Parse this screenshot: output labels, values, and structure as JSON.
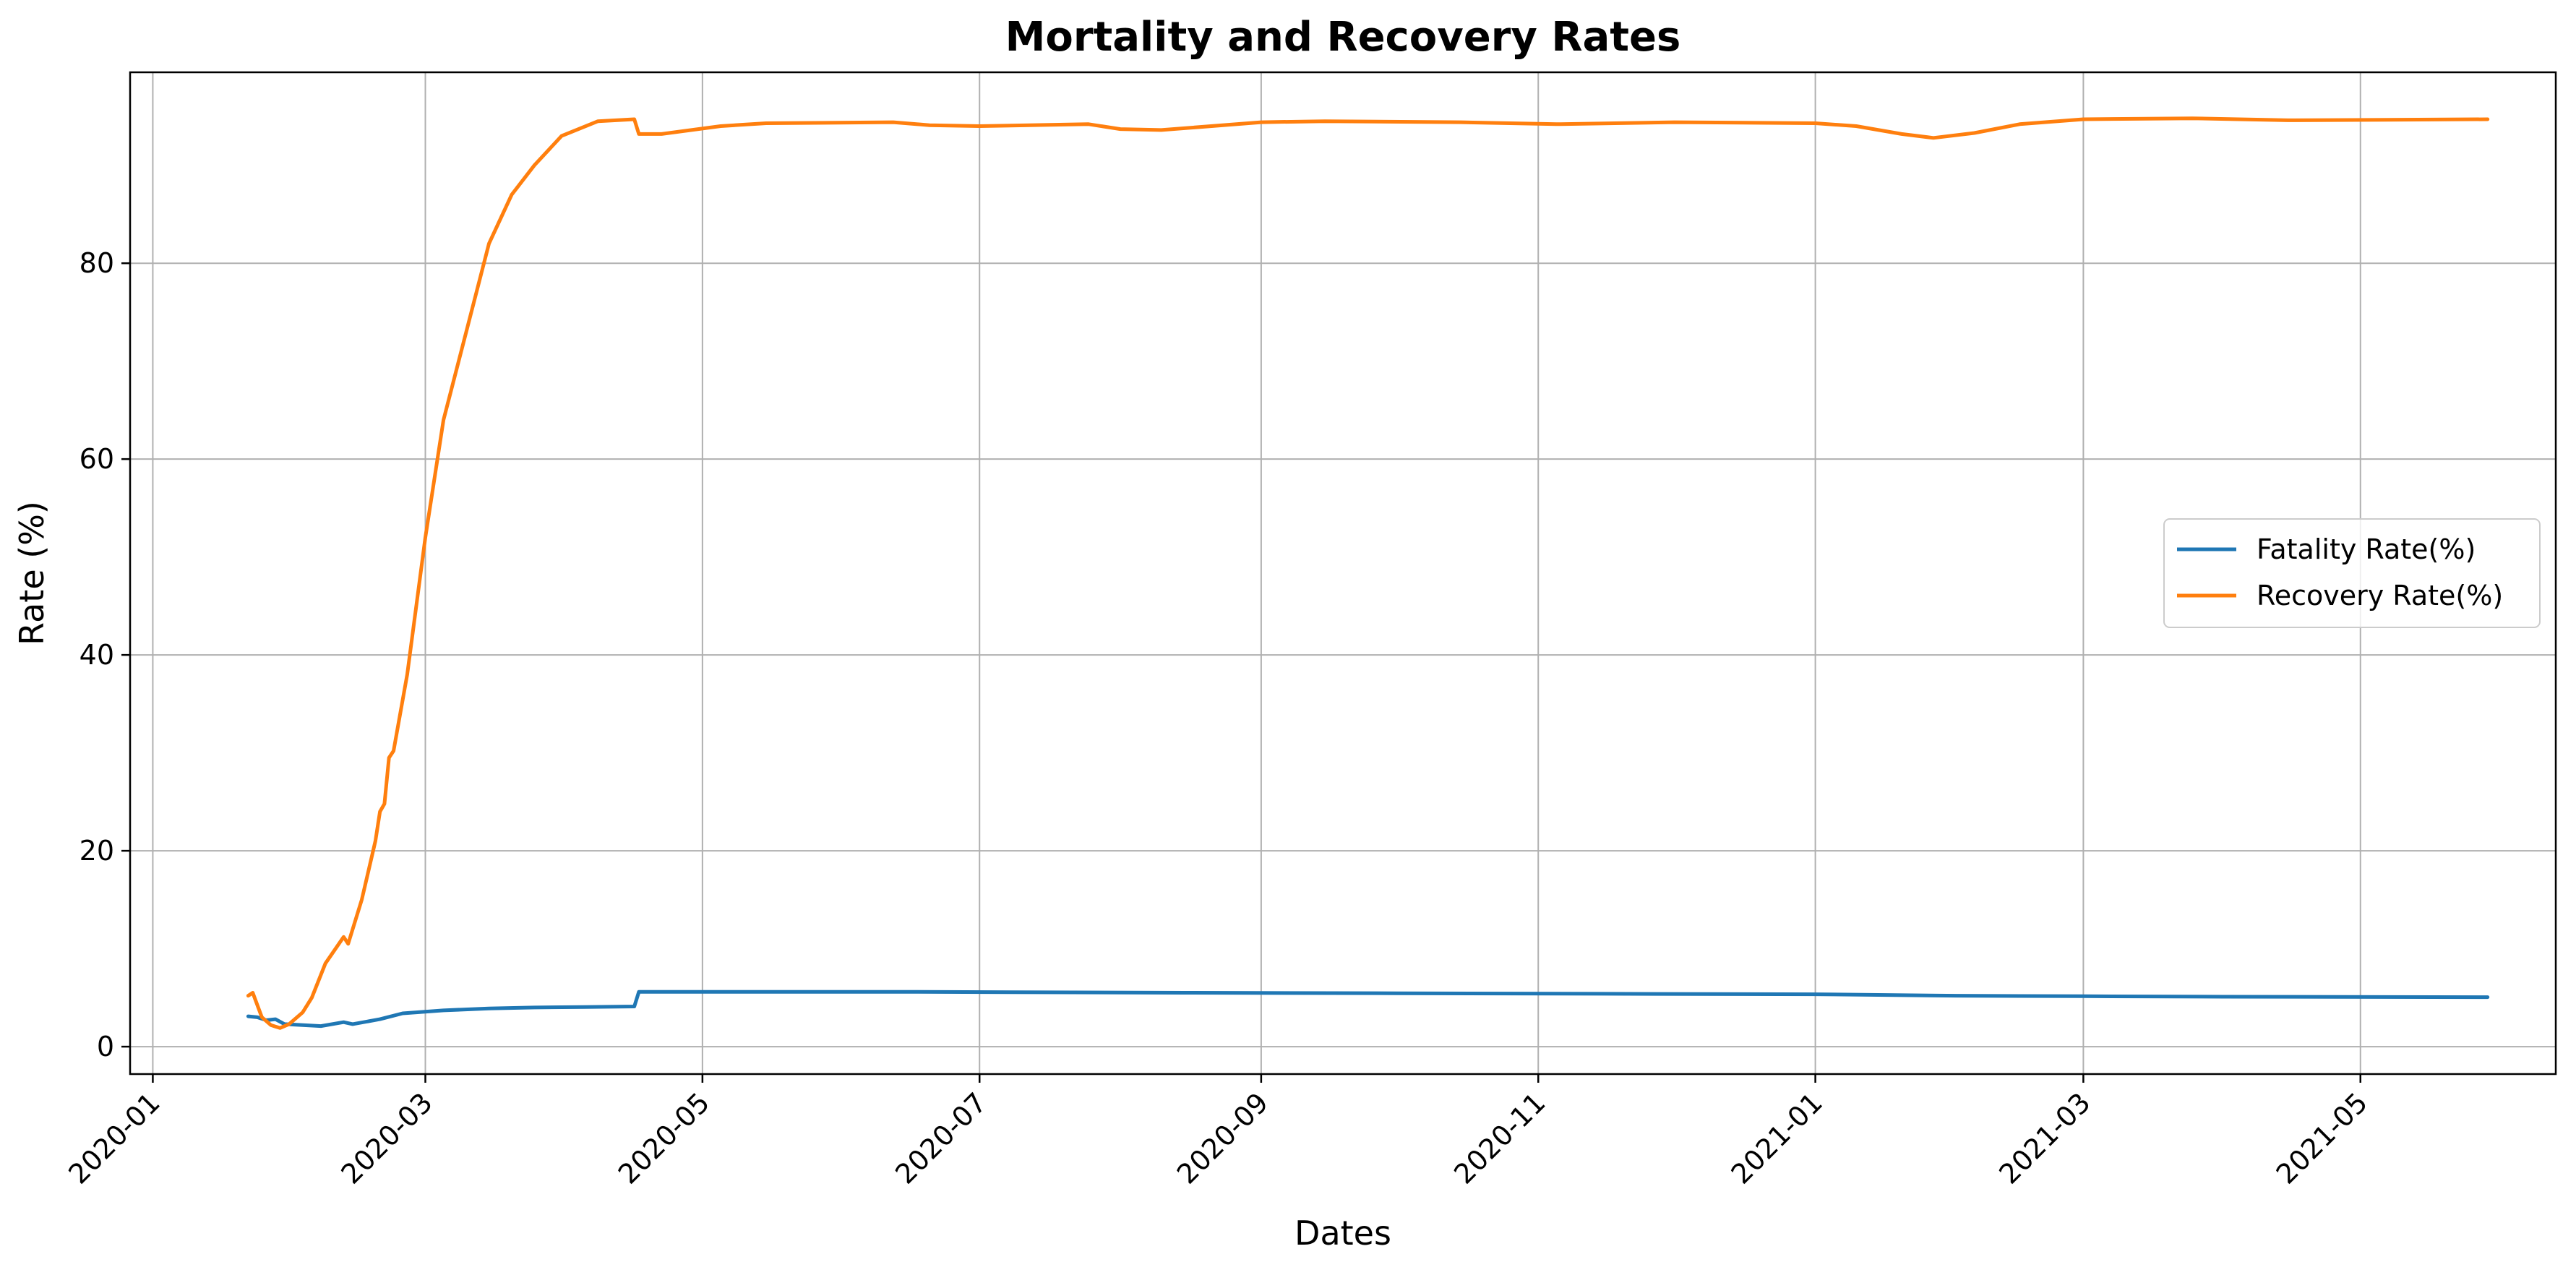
{
  "chart_data": {
    "type": "line",
    "title": "Mortality and Recovery Rates",
    "xlabel": "Dates",
    "ylabel": "Rate (%)",
    "x_axis": "date",
    "xlim": [
      "2019-12-27",
      "2021-06-13"
    ],
    "ylim": [
      -2.8,
      99.5
    ],
    "grid": true,
    "legend_position": "center-right",
    "x_ticks": [
      "2020-01-01",
      "2020-03-01",
      "2020-05-01",
      "2020-07-01",
      "2020-09-01",
      "2020-11-01",
      "2021-01-01",
      "2021-03-01",
      "2021-05-01"
    ],
    "x_tick_labels": [
      "2020-01",
      "2020-03",
      "2020-05",
      "2020-07",
      "2020-09",
      "2020-11",
      "2021-01",
      "2021-03",
      "2021-05"
    ],
    "y_ticks": [
      0,
      20,
      40,
      60,
      80
    ],
    "y_tick_labels": [
      "0",
      "20",
      "40",
      "60",
      "80"
    ],
    "series": [
      {
        "name": "Fatality Rate(%)",
        "color": "#1f77b4",
        "points": [
          [
            "2020-01-22",
            3.1
          ],
          [
            "2020-01-24",
            3.0
          ],
          [
            "2020-01-26",
            2.7
          ],
          [
            "2020-01-28",
            2.8
          ],
          [
            "2020-01-30",
            2.3
          ],
          [
            "2020-02-03",
            2.2
          ],
          [
            "2020-02-07",
            2.1
          ],
          [
            "2020-02-12",
            2.5
          ],
          [
            "2020-02-14",
            2.3
          ],
          [
            "2020-02-20",
            2.8
          ],
          [
            "2020-02-25",
            3.4
          ],
          [
            "2020-03-05",
            3.7
          ],
          [
            "2020-03-15",
            3.9
          ],
          [
            "2020-03-25",
            4.0
          ],
          [
            "2020-04-05",
            4.05
          ],
          [
            "2020-04-16",
            4.1
          ],
          [
            "2020-04-17",
            5.6
          ],
          [
            "2020-05-15",
            5.6
          ],
          [
            "2020-06-15",
            5.6
          ],
          [
            "2020-07-15",
            5.55
          ],
          [
            "2020-08-15",
            5.5
          ],
          [
            "2020-10-01",
            5.45
          ],
          [
            "2020-11-15",
            5.4
          ],
          [
            "2021-01-01",
            5.35
          ],
          [
            "2021-02-01",
            5.2
          ],
          [
            "2021-03-01",
            5.15
          ],
          [
            "2021-04-01",
            5.1
          ],
          [
            "2021-05-29",
            5.05
          ]
        ]
      },
      {
        "name": "Recovery Rate(%)",
        "color": "#ff7f0e",
        "points": [
          [
            "2020-01-22",
            5.2
          ],
          [
            "2020-01-23",
            5.5
          ],
          [
            "2020-01-25",
            3.0
          ],
          [
            "2020-01-27",
            2.2
          ],
          [
            "2020-01-29",
            1.9
          ],
          [
            "2020-01-31",
            2.3
          ],
          [
            "2020-02-03",
            3.5
          ],
          [
            "2020-02-05",
            5.0
          ],
          [
            "2020-02-08",
            8.5
          ],
          [
            "2020-02-12",
            11.2
          ],
          [
            "2020-02-13",
            10.5
          ],
          [
            "2020-02-16",
            15.0
          ],
          [
            "2020-02-19",
            21.0
          ],
          [
            "2020-02-20",
            24.0
          ],
          [
            "2020-02-21",
            24.8
          ],
          [
            "2020-02-22",
            29.5
          ],
          [
            "2020-02-23",
            30.2
          ],
          [
            "2020-02-26",
            38.0
          ],
          [
            "2020-03-01",
            52.0
          ],
          [
            "2020-03-05",
            64.0
          ],
          [
            "2020-03-10",
            73.0
          ],
          [
            "2020-03-15",
            82.0
          ],
          [
            "2020-03-20",
            87.0
          ],
          [
            "2020-03-25",
            90.0
          ],
          [
            "2020-03-31",
            93.0
          ],
          [
            "2020-04-08",
            94.5
          ],
          [
            "2020-04-16",
            94.7
          ],
          [
            "2020-04-17",
            93.2
          ],
          [
            "2020-04-22",
            93.2
          ],
          [
            "2020-05-05",
            94.0
          ],
          [
            "2020-05-15",
            94.3
          ],
          [
            "2020-06-12",
            94.4
          ],
          [
            "2020-06-20",
            94.1
          ],
          [
            "2020-07-01",
            94.0
          ],
          [
            "2020-07-25",
            94.2
          ],
          [
            "2020-08-01",
            93.7
          ],
          [
            "2020-08-10",
            93.6
          ],
          [
            "2020-09-01",
            94.4
          ],
          [
            "2020-09-15",
            94.5
          ],
          [
            "2020-10-15",
            94.4
          ],
          [
            "2020-11-05",
            94.2
          ],
          [
            "2020-12-01",
            94.4
          ],
          [
            "2021-01-01",
            94.3
          ],
          [
            "2021-01-10",
            94.0
          ],
          [
            "2021-01-20",
            93.2
          ],
          [
            "2021-01-27",
            92.8
          ],
          [
            "2021-02-05",
            93.3
          ],
          [
            "2021-02-15",
            94.2
          ],
          [
            "2021-03-01",
            94.7
          ],
          [
            "2021-03-25",
            94.8
          ],
          [
            "2021-04-15",
            94.6
          ],
          [
            "2021-05-29",
            94.7
          ]
        ]
      }
    ]
  }
}
